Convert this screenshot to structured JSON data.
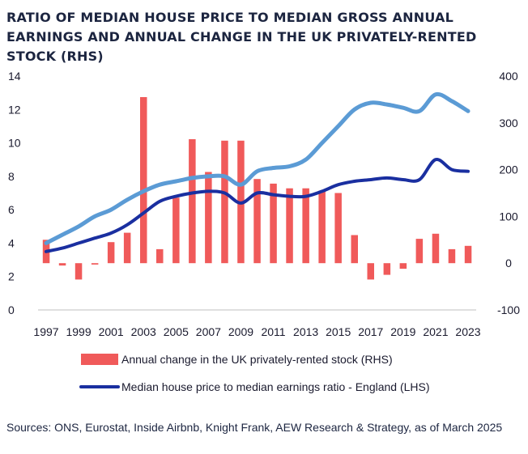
{
  "title": "RATIO OF MEDIAN HOUSE PRICE TO MEDIAN GROSS ANNUAL EARNINGS AND ANNUAL CHANGE IN THE UK PRIVATELY-RENTED STOCK (RHS)",
  "source": "Sources: ONS, Eurostat, Inside Airbnb, Knight Frank, AEW Research & Strategy, as of March 2025",
  "colors": {
    "bars": "#f05a5a",
    "dark_line": "#1a2fa0",
    "light_line": "#5b9bd5",
    "text": "#1a1a2e"
  },
  "chart_data": {
    "type": "bar+line",
    "title": "RATIO OF MEDIAN HOUSE PRICE TO MEDIAN GROSS ANNUAL EARNINGS AND ANNUAL CHANGE IN THE UK PRIVATELY-RENTED STOCK (RHS)",
    "x_tick_labels": [
      "1997",
      "1999",
      "2001",
      "2003",
      "2005",
      "2007",
      "2009",
      "2011",
      "2013",
      "2015",
      "2017",
      "2019",
      "2021",
      "2023"
    ],
    "years": [
      1997,
      1998,
      1999,
      2000,
      2001,
      2002,
      2003,
      2004,
      2005,
      2006,
      2007,
      2008,
      2009,
      2010,
      2011,
      2012,
      2013,
      2014,
      2015,
      2016,
      2017,
      2018,
      2019,
      2020,
      2021,
      2022,
      2023
    ],
    "left_axis": {
      "ylim": [
        0,
        14
      ],
      "ticks": [
        "0",
        "2",
        "4",
        "6",
        "8",
        "10",
        "12",
        "14"
      ]
    },
    "right_axis": {
      "ylim": [
        -100,
        400
      ],
      "ticks": [
        "-100",
        "0",
        "100",
        "200",
        "300",
        "400"
      ]
    },
    "legend_position": "bottom",
    "series": [
      {
        "name": "Annual change in the UK privately-rented stock (RHS)",
        "type": "bar",
        "axis": "right",
        "values": [
          50,
          -5,
          -35,
          -3,
          45,
          65,
          355,
          30,
          140,
          265,
          195,
          262,
          262,
          180,
          170,
          160,
          160,
          155,
          150,
          60,
          -35,
          -25,
          -12,
          52,
          63,
          30,
          37
        ]
      },
      {
        "type": "line",
        "axis": "left",
        "values": [
          4.0,
          4.5,
          5.0,
          5.6,
          6.0,
          6.6,
          7.1,
          7.5,
          7.7,
          7.9,
          8.0,
          8.0,
          7.5,
          8.3,
          8.5,
          8.6,
          9.0,
          10.0,
          11.0,
          12.0,
          12.4,
          12.3,
          12.1,
          11.9,
          12.9,
          12.5,
          11.9
        ]
      },
      {
        "name": "Median house price to median earnings ratio - England (LHS)",
        "type": "line",
        "axis": "left",
        "values": [
          3.5,
          3.7,
          4.0,
          4.3,
          4.6,
          5.1,
          5.8,
          6.5,
          6.8,
          7.0,
          7.1,
          7.0,
          6.4,
          7.0,
          6.9,
          6.8,
          6.8,
          7.1,
          7.5,
          7.7,
          7.8,
          7.9,
          7.8,
          7.8,
          9.0,
          8.4,
          8.3
        ]
      }
    ]
  }
}
